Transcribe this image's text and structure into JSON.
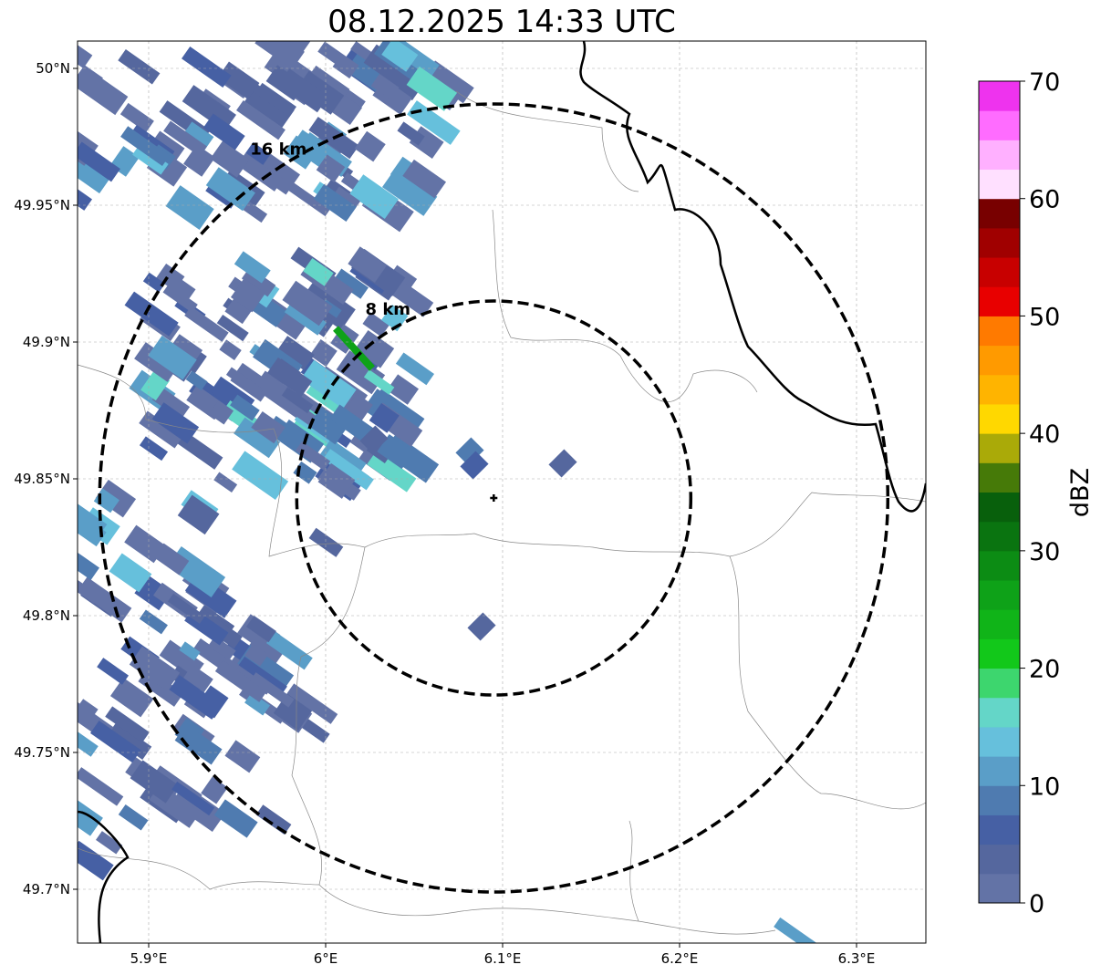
{
  "title": "08.12.2025 14:33 UTC",
  "map": {
    "lon_ticks": [
      {
        "value": 5.9,
        "label": "5.9°E"
      },
      {
        "value": 6.0,
        "label": "6°E"
      },
      {
        "value": 6.1,
        "label": "6.1°E"
      },
      {
        "value": 6.2,
        "label": "6.2°E"
      },
      {
        "value": 6.3,
        "label": "6.3°E"
      }
    ],
    "lat_ticks": [
      {
        "value": 50.0,
        "label": "50°N"
      },
      {
        "value": 49.95,
        "label": "49.95°N"
      },
      {
        "value": 49.9,
        "label": "49.9°N"
      },
      {
        "value": 49.85,
        "label": "49.85°N"
      },
      {
        "value": 49.8,
        "label": "49.8°N"
      },
      {
        "value": 49.75,
        "label": "49.75°N"
      },
      {
        "value": 49.7,
        "label": "49.7°N"
      }
    ],
    "extent": {
      "lon": [
        5.86,
        6.34
      ],
      "lat": [
        49.68,
        50.01
      ]
    },
    "radar_center": {
      "lon": 6.095,
      "lat": 49.843
    },
    "range_rings": [
      {
        "km": 8,
        "label": "8 km"
      },
      {
        "km": 16,
        "label": "16 km"
      }
    ]
  },
  "colorbar": {
    "label": "dBZ",
    "min": 0,
    "max": 70,
    "step": 2.5,
    "ticks": [
      "0",
      "10",
      "20",
      "30",
      "40",
      "50",
      "60",
      "70"
    ],
    "colors": [
      "#6373a6",
      "#55679e",
      "#4660a4",
      "#4f7bb0",
      "#5a9ec8",
      "#66c0dc",
      "#64d6c8",
      "#3dd66e",
      "#12c81a",
      "#10b418",
      "#0ea218",
      "#0c8c14",
      "#0a7410",
      "#08600c",
      "#467a08",
      "#aaaa08",
      "#ffd800",
      "#ffb400",
      "#ff9a00",
      "#ff7a00",
      "#e80000",
      "#c80000",
      "#a00000",
      "#780000",
      "#ffe0ff",
      "#ffb0ff",
      "#ff6cff",
      "#ee33ee"
    ]
  }
}
